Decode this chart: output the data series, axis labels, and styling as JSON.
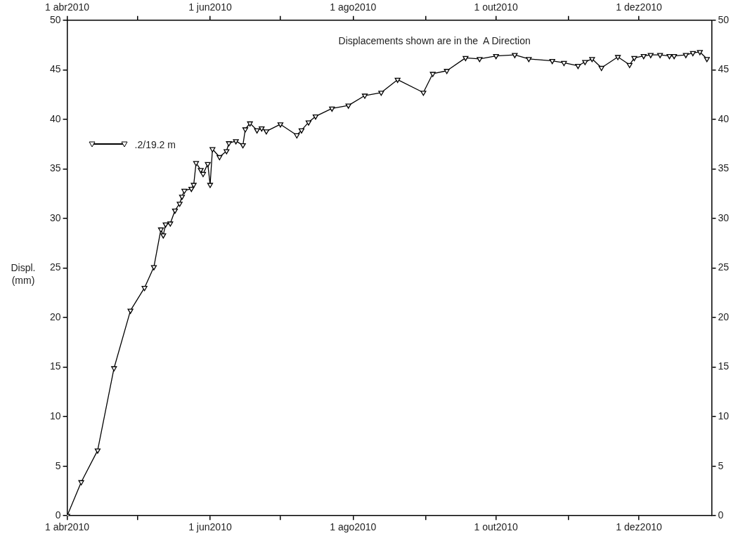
{
  "chart_data": {
    "type": "line",
    "ylabel": "Displ. (mm)",
    "annotations": [
      "Displacements shown are in the  A Direction"
    ],
    "xlim": [
      "2010-04-01",
      "2011-01-01"
    ],
    "xticks": [
      {
        "value": "2010-04-01",
        "label": "1 abr2010"
      },
      {
        "value": "2010-05-01",
        "label": null
      },
      {
        "value": "2010-06-01",
        "label": "1 jun2010"
      },
      {
        "value": "2010-07-01",
        "label": null
      },
      {
        "value": "2010-08-01",
        "label": "1 ago2010"
      },
      {
        "value": "2010-09-01",
        "label": null
      },
      {
        "value": "2010-10-01",
        "label": "1 out2010"
      },
      {
        "value": "2010-11-01",
        "label": null
      },
      {
        "value": "2010-12-01",
        "label": "1 dez2010"
      }
    ],
    "x2lim": [
      "2010-04-01",
      "2011-01-01"
    ],
    "x2ticks": [
      {
        "value": "2010-04-01",
        "label": "1 abr2010"
      },
      {
        "value": "2010-05-01",
        "label": null
      },
      {
        "value": "2010-06-01",
        "label": "1 jun2010"
      },
      {
        "value": "2010-07-01",
        "label": null
      },
      {
        "value": "2010-08-01",
        "label": "1 ago2010"
      },
      {
        "value": "2010-09-01",
        "label": null
      },
      {
        "value": "2010-10-01",
        "label": "1 out2010"
      },
      {
        "value": "2010-11-01",
        "label": null
      },
      {
        "value": "2010-12-01",
        "label": "1 dez2010"
      }
    ],
    "ylim": [
      0,
      50
    ],
    "yticks": [
      0,
      5,
      10,
      15,
      20,
      25,
      30,
      35,
      40,
      45,
      50
    ],
    "y2lim": [
      0,
      50
    ],
    "y2ticks": [
      0,
      5,
      10,
      15,
      20,
      25,
      30,
      35,
      40,
      45,
      50
    ],
    "grid": false,
    "legend": "top left",
    "marker": "triangle",
    "line_style": "solid",
    "x": [
      "2010-04-01",
      "2010-04-07",
      "2010-04-14",
      "2010-04-21",
      "2010-04-28",
      "2010-05-04",
      "2010-05-08",
      "2010-05-11",
      "2010-05-12",
      "2010-05-13",
      "2010-05-15",
      "2010-05-17",
      "2010-05-19",
      "2010-05-20",
      "2010-05-21",
      "2010-05-24",
      "2010-05-25",
      "2010-05-26",
      "2010-05-28",
      "2010-05-29",
      "2010-05-31",
      "2010-06-01",
      "2010-06-02",
      "2010-06-05",
      "2010-06-08",
      "2010-06-09",
      "2010-06-12",
      "2010-06-15",
      "2010-06-16",
      "2010-06-18",
      "2010-06-21",
      "2010-06-23",
      "2010-06-25",
      "2010-07-01",
      "2010-07-08",
      "2010-07-10",
      "2010-07-13",
      "2010-07-16",
      "2010-07-23",
      "2010-07-30",
      "2010-08-06",
      "2010-08-13",
      "2010-08-20",
      "2010-08-31",
      "2010-09-04",
      "2010-09-10",
      "2010-09-18",
      "2010-09-24",
      "2010-10-01",
      "2010-10-09",
      "2010-10-15",
      "2010-10-25",
      "2010-10-30",
      "2010-11-05",
      "2010-11-08",
      "2010-11-11",
      "2010-11-15",
      "2010-11-22",
      "2010-11-27",
      "2010-11-29",
      "2010-12-03",
      "2010-12-06",
      "2010-12-10",
      "2010-12-14",
      "2010-12-16",
      "2010-12-21",
      "2010-12-24",
      "2010-12-27",
      "2010-12-30"
    ],
    "series": [
      {
        "name": ".2/19.2 m",
        "color": "#000000",
        "values": [
          0,
          3.4,
          6.6,
          14.9,
          20.7,
          23.0,
          25.1,
          28.9,
          28.3,
          29.4,
          29.5,
          30.8,
          31.5,
          32.2,
          32.8,
          33.0,
          33.4,
          35.6,
          34.9,
          34.5,
          35.5,
          33.4,
          37.0,
          36.2,
          36.8,
          37.6,
          37.8,
          37.4,
          39.0,
          39.6,
          38.9,
          39.1,
          38.8,
          39.5,
          38.4,
          38.9,
          39.7,
          40.3,
          41.1,
          41.4,
          42.4,
          42.7,
          44.0,
          42.7,
          44.6,
          44.9,
          46.2,
          46.1,
          46.4,
          46.5,
          46.1,
          45.9,
          45.7,
          45.4,
          45.8,
          46.1,
          45.2,
          46.3,
          45.5,
          46.2,
          46.4,
          46.5,
          46.5,
          46.4,
          46.4,
          46.5,
          46.7,
          46.8,
          46.1
        ]
      }
    ]
  }
}
